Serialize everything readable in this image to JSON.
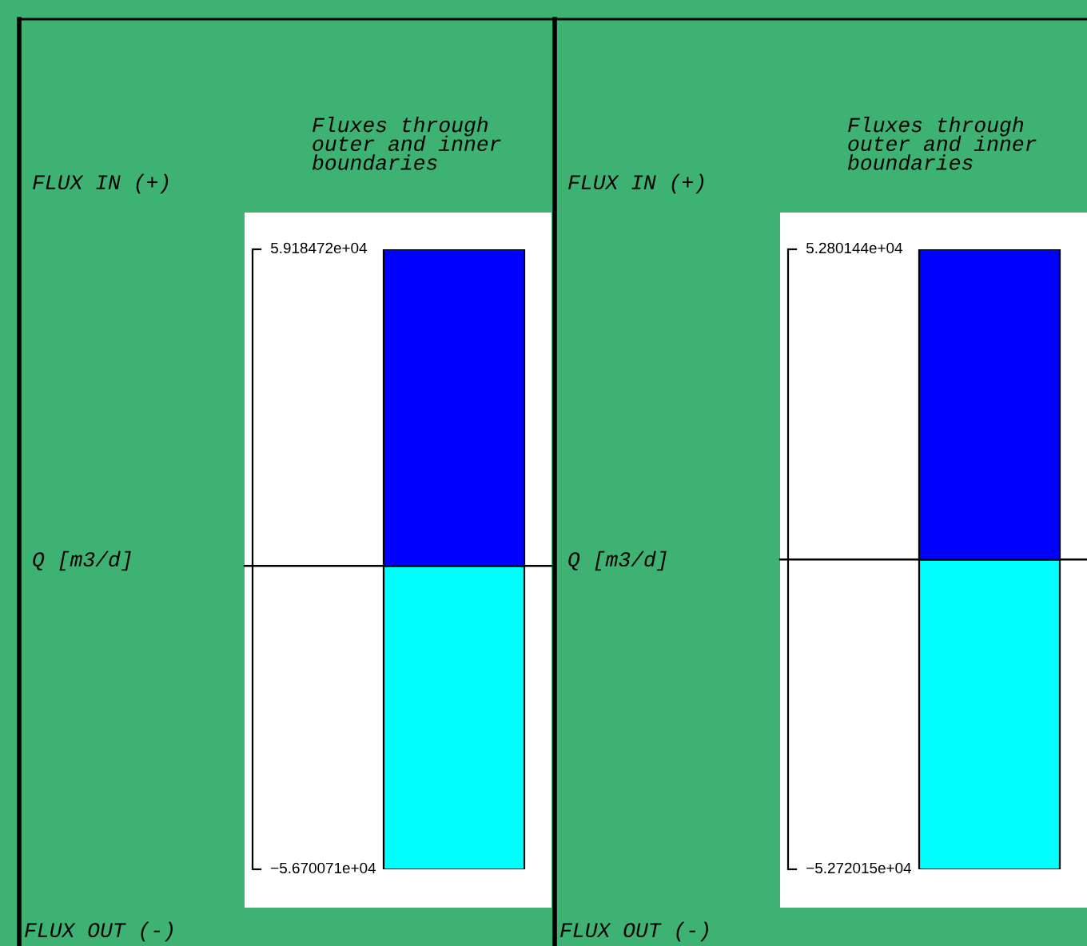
{
  "chart_data": [
    {
      "type": "bar",
      "title": "Fluxes through\nouter and inner\nboundaries",
      "ylabel": "Q [m3/d]",
      "annotations": [
        "FLUX IN (+)",
        "FLUX OUT (-)"
      ],
      "categories": [
        null
      ],
      "series": [
        {
          "color": "#0000ff",
          "values": [
            59184.72
          ]
        },
        {
          "color": "#00ffff",
          "values": [
            -56700.71
          ]
        }
      ],
      "ylim": [
        -56700.71,
        59184.72
      ],
      "yticks": [
        {
          "value": -56700.71,
          "label": "−5.670071e+04"
        },
        {
          "value": 59184.72,
          "label": "5.918472e+04"
        }
      ],
      "ref_lines": [
        {
          "axis": "y",
          "value": 0,
          "color": "#000000"
        }
      ],
      "grid": false,
      "legend": false,
      "stacked": true
    },
    {
      "type": "bar",
      "title": "Fluxes through\nouter and inner\nboundaries",
      "ylabel": "Q [m3/d]",
      "annotations": [
        "FLUX IN (+)",
        "FLUX OUT (-)"
      ],
      "categories": [
        null
      ],
      "series": [
        {
          "color": "#0000ff",
          "values": [
            52801.44
          ]
        },
        {
          "color": "#00ffff",
          "values": [
            -52720.15
          ]
        }
      ],
      "ylim": [
        -52720.15,
        52801.44
      ],
      "yticks": [
        {
          "value": -52720.15,
          "label": "−5.272015e+04"
        },
        {
          "value": 52801.44,
          "label": "5.280144e+04"
        }
      ],
      "ref_lines": [
        {
          "axis": "y",
          "value": 0,
          "color": "#000000"
        }
      ],
      "grid": false,
      "legend": false,
      "stacked": true
    }
  ]
}
